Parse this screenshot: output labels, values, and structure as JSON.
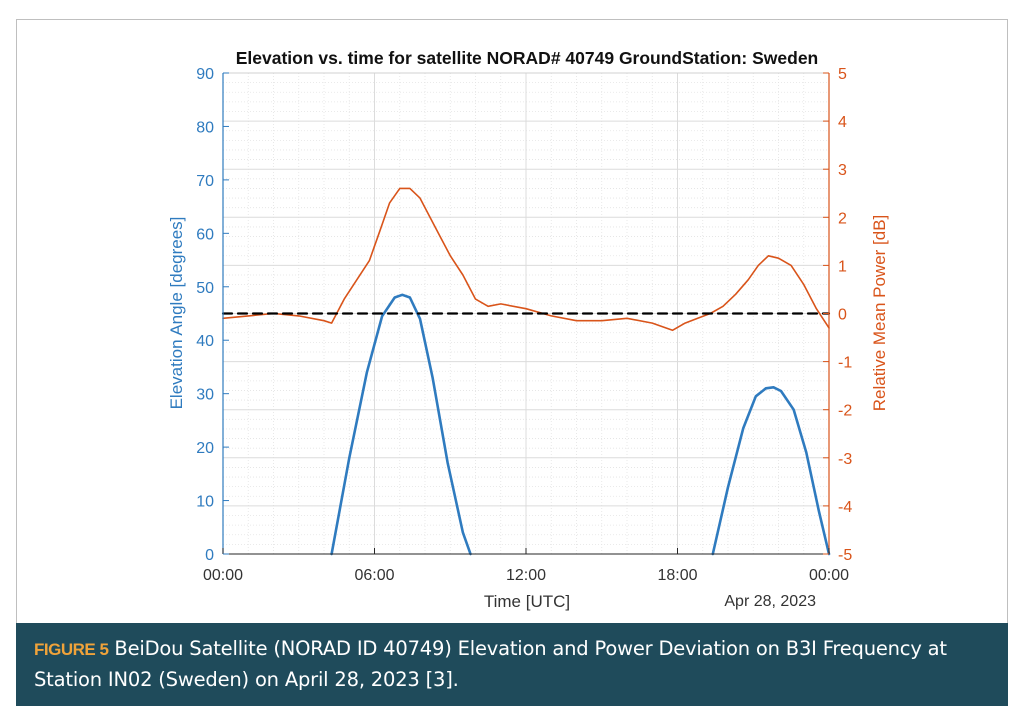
{
  "chart_data": {
    "type": "line",
    "title": "Elevation vs. time for satellite NORAD# 40749 GroundStation: Sweden",
    "xlabel": "Time [UTC]",
    "date_label": "Apr 28, 2023",
    "x_unit": "hours",
    "xlim": [
      0,
      24
    ],
    "x_ticks": [
      0,
      6,
      12,
      18,
      24
    ],
    "x_tick_labels": [
      "00:00",
      "06:00",
      "12:00",
      "18:00",
      "00:00"
    ],
    "y_left": {
      "label": "Elevation Angle [degrees]",
      "lim": [
        0,
        90
      ],
      "ticks": [
        0,
        10,
        20,
        30,
        40,
        50,
        60,
        70,
        80,
        90
      ],
      "tick_labels": [
        "0",
        "10",
        "20",
        "30",
        "40",
        "50",
        "60",
        "70",
        "80",
        "90"
      ],
      "color": "#2f7bbf"
    },
    "y_right": {
      "label": "Relative Mean Power [dB]",
      "lim": [
        -5,
        5
      ],
      "ticks": [
        -5,
        -4,
        -3,
        -2,
        -1,
        0,
        1,
        2,
        3,
        4,
        5
      ],
      "tick_labels": [
        "-5",
        "-4",
        "-3",
        "-2",
        "-1",
        "0",
        "1",
        "2",
        "3",
        "4",
        "5"
      ],
      "color": "#d9541a"
    },
    "grid": true,
    "series": [
      {
        "name": "Elevation Angle",
        "axis": "left",
        "color": "#2f7bbf",
        "x": [
          4.3,
          5.0,
          5.7,
          6.3,
          6.8,
          7.1,
          7.4,
          7.8,
          8.3,
          8.9,
          9.5,
          9.8
        ],
        "y": [
          0,
          18,
          34,
          44.5,
          48,
          48.5,
          48,
          44,
          33,
          17,
          4,
          0
        ]
      },
      {
        "name": "Elevation Angle",
        "axis": "left",
        "color": "#2f7bbf",
        "x": [
          19.4,
          20.0,
          20.6,
          21.1,
          21.5,
          21.8,
          22.1,
          22.6,
          23.1,
          23.6,
          24.0
        ],
        "y": [
          0,
          12.5,
          23.5,
          29.5,
          31,
          31.2,
          30.5,
          27,
          19,
          8,
          0
        ]
      },
      {
        "name": "Relative Mean Power",
        "axis": "right",
        "color": "#d9541a",
        "x": [
          0,
          1,
          2,
          3,
          4,
          4.3,
          4.8,
          5.3,
          5.8,
          6.2,
          6.6,
          7.0,
          7.4,
          7.8,
          8.2,
          8.6,
          9.0,
          9.5,
          10.0,
          10.5,
          11.0,
          12.0,
          13.0,
          14.0,
          15.0,
          16.0,
          17.0,
          17.8,
          18.3,
          18.8,
          19.3,
          19.8,
          20.3,
          20.8,
          21.2,
          21.6,
          22.0,
          22.5,
          23.0,
          23.5,
          24.0
        ],
        "y": [
          -0.1,
          -0.05,
          0,
          -0.05,
          -0.15,
          -0.2,
          0.3,
          0.7,
          1.1,
          1.7,
          2.3,
          2.6,
          2.6,
          2.4,
          2.0,
          1.6,
          1.2,
          0.8,
          0.3,
          0.15,
          0.2,
          0.1,
          -0.05,
          -0.15,
          -0.15,
          -0.1,
          -0.2,
          -0.35,
          -0.2,
          -0.1,
          0.0,
          0.15,
          0.4,
          0.7,
          1.0,
          1.2,
          1.15,
          1.0,
          0.6,
          0.1,
          -0.3
        ]
      },
      {
        "name": "Reference",
        "axis": "right",
        "color": "#000000",
        "dashed": true,
        "x": [
          0,
          24
        ],
        "y": [
          0,
          0
        ]
      }
    ]
  },
  "caption": {
    "label": "FIGURE 5",
    "text": "BeiDou Satellite (NORAD ID 40749) Elevation and Power Deviation on B3I Frequency at Station IN02 (Sweden) on April 28, 2023 [3]."
  }
}
